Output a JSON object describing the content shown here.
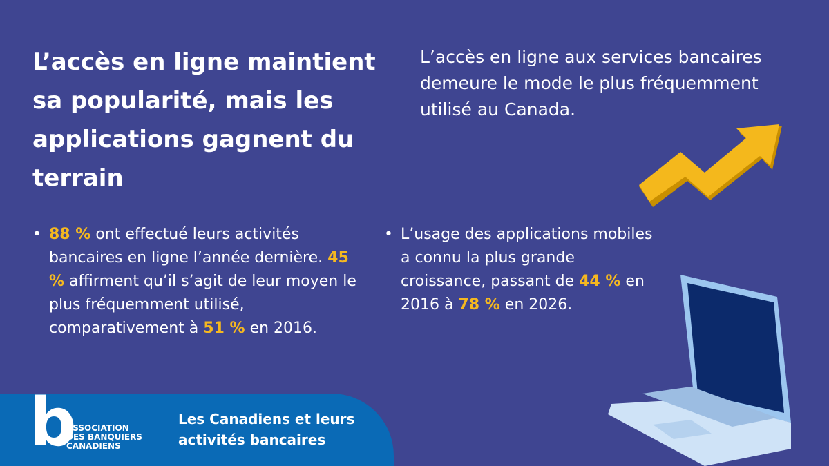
{
  "header": {
    "title": "L’accès en ligne maintient sa popularité, mais les applications gagnent du terrain",
    "subtitle": "L’accès en ligne aux services bancaires demeure le mode le plus fréquemment utilisé au Canada."
  },
  "bullets": [
    [
      {
        "text": "88 %",
        "highlight": true
      },
      {
        "text": " ont effectué leurs activités bancaires en ligne l’année dernière. "
      },
      {
        "text": "45 %",
        "highlight": true
      },
      {
        "text": " affirment qu’il s’agit de leur moyen le plus fréquemment utilisé, comparativement à "
      },
      {
        "text": "51 %",
        "highlight": true
      },
      {
        "text": " en 2016."
      }
    ],
    [
      {
        "text": "L’usage des applications mobiles a connu la plus grande croissance, passant de "
      },
      {
        "text": "44 %",
        "highlight": true
      },
      {
        "text": " en 2016 à  "
      },
      {
        "text": "78 %",
        "highlight": true
      },
      {
        "text": " en 2026."
      }
    ]
  ],
  "footer": {
    "logo_letter": "b",
    "logo_lines": [
      "ASSOCIATION",
      "DES BANQUIERS",
      "CANADIENS"
    ],
    "title": "Les Canadiens et leurs activités bancaires"
  }
}
